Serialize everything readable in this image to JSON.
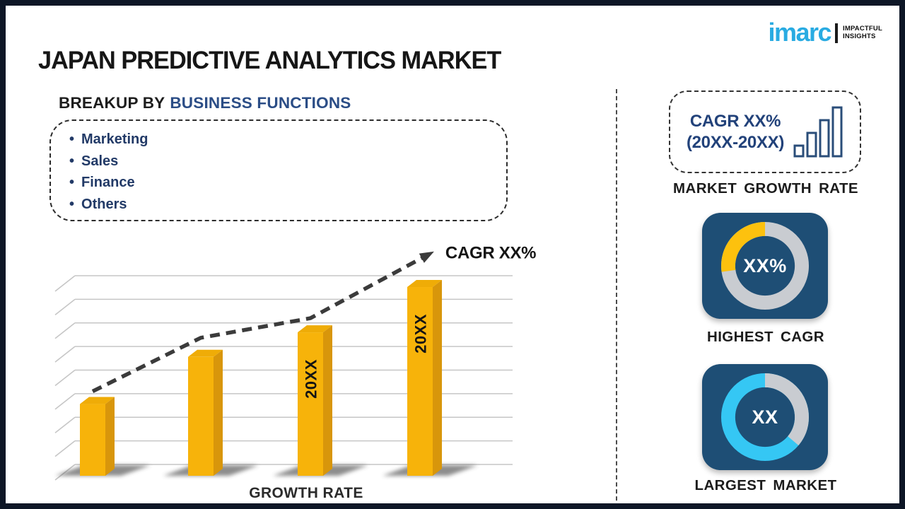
{
  "header": {
    "title": "JAPAN PREDICTIVE ANALYTICS MARKET"
  },
  "logo": {
    "brand": "imarc",
    "tagline_line1": "IMPACTFUL",
    "tagline_line2": "INSIGHTS",
    "brand_color": "#29ABE2"
  },
  "breakup": {
    "heading_prefix": "BREAKUP BY",
    "heading_highlight": "BUSINESS FUNCTIONS",
    "items": [
      "Marketing",
      "Sales",
      "Finance",
      "Others"
    ]
  },
  "chart_data": {
    "type": "bar",
    "title": "",
    "xlabel": "GROWTH RATE",
    "ylabel": "",
    "categories": [
      "",
      "",
      "20XX",
      "20XX"
    ],
    "bar_labels": [
      "",
      "",
      "20XX",
      "20XX"
    ],
    "values_relative": [
      0.32,
      0.57,
      0.7,
      0.94
    ],
    "gridline_count": 9,
    "grid": "horizontal-with-3d-left-ticks",
    "trend_label": "CAGR XX%",
    "trend_style": "dashed-arrow",
    "bar_color": "#F7B30A",
    "legend": "none"
  },
  "right_panel": {
    "cagr_box": {
      "line1": "CAGR XX%",
      "line2": "(20XX-20XX)"
    },
    "market_growth_rate_label": "MARKET GROWTH RATE",
    "highest_cagr": {
      "value": "XX%",
      "label": "HIGHEST CAGR",
      "donut": {
        "ring_color": "#C9CCD1",
        "arc_color": "#FDC10E",
        "arc_start_deg": 262,
        "arc_sweep_deg": 98
      }
    },
    "largest_market": {
      "value": "XX",
      "label": "LARGEST MARKET",
      "donut": {
        "ring_color": "#35C7F4",
        "arc_color": "#C9CCD1",
        "arc_start_deg": 0,
        "arc_sweep_deg": 130
      }
    }
  },
  "colors": {
    "accent_navy": "#22427A",
    "bullet_navy": "#223A67",
    "card_navy": "#1E4E75",
    "bar_yellow": "#F7B30A",
    "cyan": "#35C7F4",
    "silver": "#C9CCD1",
    "frame_border": "#0D1626"
  }
}
